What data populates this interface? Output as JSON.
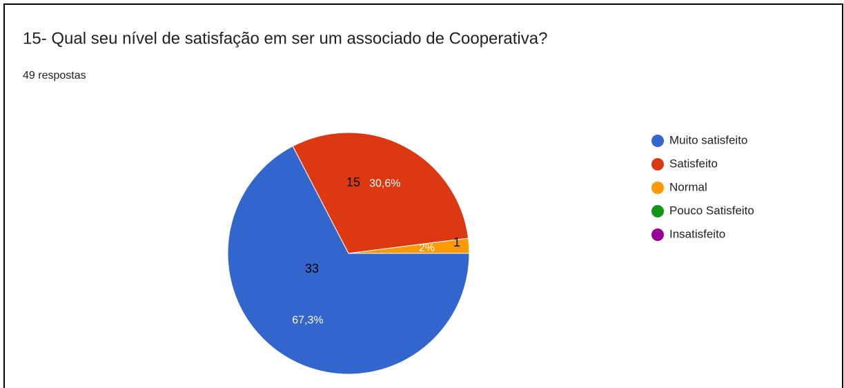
{
  "chart_data": {
    "type": "pie",
    "title": "15- Qual seu nível de satisfação em ser um associado de Cooperativa?",
    "subtitle": "49 respostas",
    "categories": [
      "Muito satisfeito",
      "Satisfeito",
      "Normal",
      "Pouco Satisfeito",
      "Insatisfeito"
    ],
    "values": [
      67.3,
      30.6,
      2,
      0,
      0
    ],
    "value_labels": [
      "67,3%",
      "30,6%",
      "2%",
      null,
      null
    ],
    "counts": [
      33,
      15,
      1,
      null,
      null
    ],
    "colors": [
      "#3366cc",
      "#dc3912",
      "#ff9900",
      "#109618",
      "#990099"
    ],
    "legend": "right"
  }
}
